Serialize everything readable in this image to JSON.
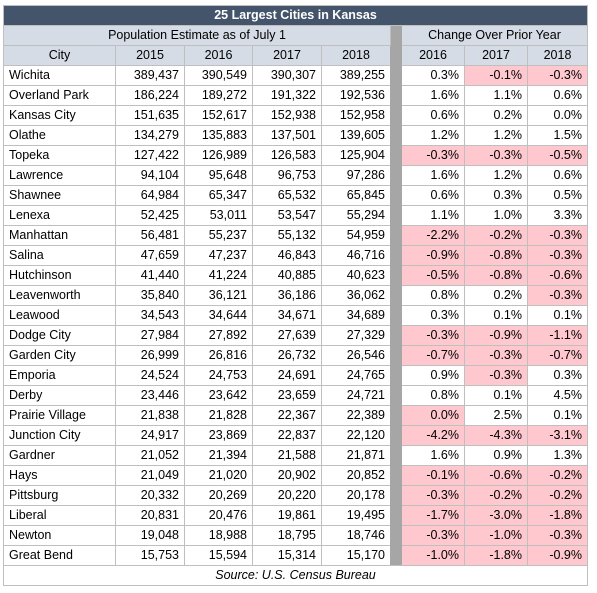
{
  "title": "25 Largest Cities in Kansas",
  "group_headers": {
    "population": "Population Estimate as of July 1",
    "change": "Change Over Prior Year"
  },
  "columns": [
    "City",
    "2015",
    "2016",
    "2017",
    "2018",
    "2016",
    "2017",
    "2018"
  ],
  "rows": [
    {
      "city": "Wichita",
      "pop": [
        "389,437",
        "390,549",
        "390,307",
        "389,255"
      ],
      "chg": [
        "0.3%",
        "-0.1%",
        "-0.3%"
      ]
    },
    {
      "city": "Overland Park",
      "pop": [
        "186,224",
        "189,272",
        "191,322",
        "192,536"
      ],
      "chg": [
        "1.6%",
        "1.1%",
        "0.6%"
      ]
    },
    {
      "city": "Kansas City",
      "pop": [
        "151,635",
        "152,617",
        "152,938",
        "152,958"
      ],
      "chg": [
        "0.6%",
        "0.2%",
        "0.0%"
      ]
    },
    {
      "city": "Olathe",
      "pop": [
        "134,279",
        "135,883",
        "137,501",
        "139,605"
      ],
      "chg": [
        "1.2%",
        "1.2%",
        "1.5%"
      ]
    },
    {
      "city": "Topeka",
      "pop": [
        "127,422",
        "126,989",
        "126,583",
        "125,904"
      ],
      "chg": [
        "-0.3%",
        "-0.3%",
        "-0.5%"
      ]
    },
    {
      "city": "Lawrence",
      "pop": [
        "94,104",
        "95,648",
        "96,753",
        "97,286"
      ],
      "chg": [
        "1.6%",
        "1.2%",
        "0.6%"
      ]
    },
    {
      "city": "Shawnee",
      "pop": [
        "64,984",
        "65,347",
        "65,532",
        "65,845"
      ],
      "chg": [
        "0.6%",
        "0.3%",
        "0.5%"
      ]
    },
    {
      "city": "Lenexa",
      "pop": [
        "52,425",
        "53,011",
        "53,547",
        "55,294"
      ],
      "chg": [
        "1.1%",
        "1.0%",
        "3.3%"
      ]
    },
    {
      "city": "Manhattan",
      "pop": [
        "56,481",
        "55,237",
        "55,132",
        "54,959"
      ],
      "chg": [
        "-2.2%",
        "-0.2%",
        "-0.3%"
      ]
    },
    {
      "city": "Salina",
      "pop": [
        "47,659",
        "47,237",
        "46,843",
        "46,716"
      ],
      "chg": [
        "-0.9%",
        "-0.8%",
        "-0.3%"
      ]
    },
    {
      "city": "Hutchinson",
      "pop": [
        "41,440",
        "41,224",
        "40,885",
        "40,623"
      ],
      "chg": [
        "-0.5%",
        "-0.8%",
        "-0.6%"
      ]
    },
    {
      "city": "Leavenworth",
      "pop": [
        "35,840",
        "36,121",
        "36,186",
        "36,062"
      ],
      "chg": [
        "0.8%",
        "0.2%",
        "-0.3%"
      ]
    },
    {
      "city": "Leawood",
      "pop": [
        "34,543",
        "34,644",
        "34,671",
        "34,689"
      ],
      "chg": [
        "0.3%",
        "0.1%",
        "0.1%"
      ]
    },
    {
      "city": "Dodge City",
      "pop": [
        "27,984",
        "27,892",
        "27,639",
        "27,329"
      ],
      "chg": [
        "-0.3%",
        "-0.9%",
        "-1.1%"
      ]
    },
    {
      "city": "Garden City",
      "pop": [
        "26,999",
        "26,816",
        "26,732",
        "26,546"
      ],
      "chg": [
        "-0.7%",
        "-0.3%",
        "-0.7%"
      ]
    },
    {
      "city": "Emporia",
      "pop": [
        "24,524",
        "24,753",
        "24,691",
        "24,765"
      ],
      "chg": [
        "0.9%",
        "-0.3%",
        "0.3%"
      ]
    },
    {
      "city": "Derby",
      "pop": [
        "23,446",
        "23,642",
        "23,659",
        "24,721"
      ],
      "chg": [
        "0.8%",
        "0.1%",
        "4.5%"
      ]
    },
    {
      "city": "Prairie Village",
      "pop": [
        "21,838",
        "21,828",
        "22,367",
        "22,389"
      ],
      "chg": [
        "0.0%",
        "2.5%",
        "0.1%"
      ]
    },
    {
      "city": "Junction City",
      "pop": [
        "24,917",
        "23,869",
        "22,837",
        "22,120"
      ],
      "chg": [
        "-4.2%",
        "-4.3%",
        "-3.1%"
      ]
    },
    {
      "city": "Gardner",
      "pop": [
        "21,052",
        "21,394",
        "21,588",
        "21,871"
      ],
      "chg": [
        "1.6%",
        "0.9%",
        "1.3%"
      ]
    },
    {
      "city": "Hays",
      "pop": [
        "21,049",
        "21,020",
        "20,902",
        "20,852"
      ],
      "chg": [
        "-0.1%",
        "-0.6%",
        "-0.2%"
      ]
    },
    {
      "city": "Pittsburg",
      "pop": [
        "20,332",
        "20,269",
        "20,220",
        "20,178"
      ],
      "chg": [
        "-0.3%",
        "-0.2%",
        "-0.2%"
      ]
    },
    {
      "city": "Liberal",
      "pop": [
        "20,831",
        "20,476",
        "19,861",
        "19,495"
      ],
      "chg": [
        "-1.7%",
        "-3.0%",
        "-1.8%"
      ]
    },
    {
      "city": "Newton",
      "pop": [
        "19,048",
        "18,988",
        "18,795",
        "18,746"
      ],
      "chg": [
        "-0.3%",
        "-1.0%",
        "-0.3%"
      ]
    },
    {
      "city": "Great Bend",
      "pop": [
        "15,753",
        "15,594",
        "15,314",
        "15,170"
      ],
      "chg": [
        "-1.0%",
        "-1.8%",
        "-0.9%"
      ]
    }
  ],
  "highlighted_cells": [
    [
      0,
      1
    ],
    [
      0,
      2
    ],
    [
      4,
      0
    ],
    [
      4,
      1
    ],
    [
      4,
      2
    ],
    [
      8,
      0
    ],
    [
      8,
      1
    ],
    [
      8,
      2
    ],
    [
      9,
      0
    ],
    [
      9,
      1
    ],
    [
      9,
      2
    ],
    [
      10,
      0
    ],
    [
      10,
      1
    ],
    [
      10,
      2
    ],
    [
      11,
      2
    ],
    [
      13,
      0
    ],
    [
      13,
      1
    ],
    [
      13,
      2
    ],
    [
      14,
      0
    ],
    [
      14,
      1
    ],
    [
      14,
      2
    ],
    [
      15,
      1
    ],
    [
      17,
      0
    ],
    [
      18,
      0
    ],
    [
      18,
      1
    ],
    [
      18,
      2
    ],
    [
      20,
      0
    ],
    [
      20,
      1
    ],
    [
      20,
      2
    ],
    [
      21,
      0
    ],
    [
      21,
      1
    ],
    [
      21,
      2
    ],
    [
      22,
      0
    ],
    [
      22,
      1
    ],
    [
      22,
      2
    ],
    [
      23,
      0
    ],
    [
      23,
      1
    ],
    [
      23,
      2
    ],
    [
      24,
      0
    ],
    [
      24,
      1
    ],
    [
      24,
      2
    ]
  ],
  "source": "Source: U.S. Census Bureau",
  "colors": {
    "title_bg": "#44546a",
    "header_bg": "#d6dce5",
    "separator": "#a6a6a6",
    "negative_highlight": "#ffc7ce"
  }
}
